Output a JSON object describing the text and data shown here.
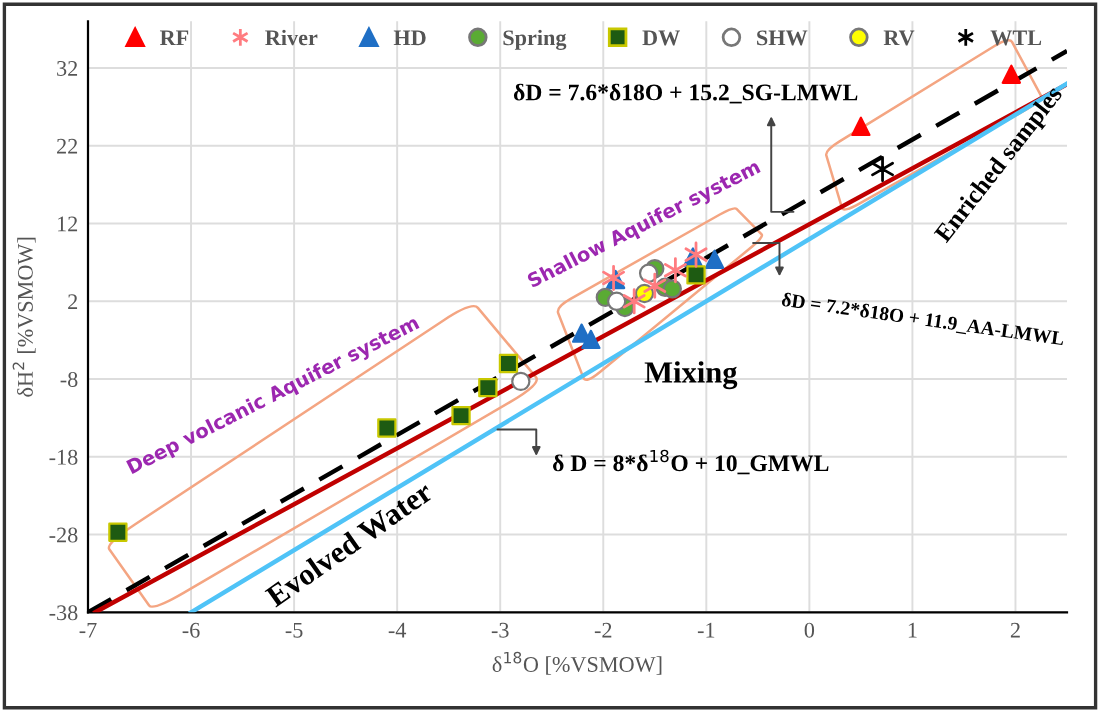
{
  "chart_data": {
    "type": "scatter",
    "xlabel": "δ$^{18}$O [%VSMOW]",
    "ylabel": "δH$^{2}$ [%VSMOW]",
    "xlim": [
      -7,
      2.5
    ],
    "ylim": [
      -38,
      38
    ],
    "xticks": [
      -7,
      -6,
      -5,
      -4,
      -3,
      -2,
      -1,
      0,
      1,
      2
    ],
    "yticks": [
      -38,
      -28,
      -18,
      -8,
      2,
      12,
      22,
      32
    ],
    "grid": true,
    "legend": "top",
    "series": [
      {
        "name": "RF",
        "marker": "triangle",
        "color": "#ff0000",
        "x": [
          0.5,
          1.96
        ],
        "values": [
          24.5,
          31.2
        ]
      },
      {
        "name": "River",
        "marker": "cross",
        "color": "#ff7c80",
        "x": [
          -1.9,
          -1.7,
          -1.5,
          -1.3,
          -1.1
        ],
        "values": [
          5,
          2,
          4,
          6,
          8
        ]
      },
      {
        "name": "HD",
        "marker": "triangle",
        "color": "#1f6fc5",
        "x": [
          -2.21,
          -2.12,
          -1.88,
          -1.13,
          -0.92
        ],
        "values": [
          -2.1,
          -2.9,
          4.8,
          7.7,
          7.4
        ]
      },
      {
        "name": "Spring",
        "marker": "circle",
        "color": "#5aab33",
        "x": [
          -1.98,
          -1.79,
          -1.5,
          -1.4,
          -1.33
        ],
        "values": [
          2.5,
          1.2,
          6.2,
          3.8,
          3.6
        ]
      },
      {
        "name": "DW",
        "marker": "square",
        "color": "#1e5b12",
        "x": [
          -6.71,
          -4.1,
          -3.38,
          -3.12,
          -2.92,
          -1.1
        ],
        "values": [
          -27.7,
          -14.3,
          -12.7,
          -9.1,
          -6,
          5.4
        ]
      },
      {
        "name": "SHW",
        "marker": "circle",
        "color": "#ffffff",
        "x": [
          -2.8,
          -1.87,
          -1.56
        ],
        "values": [
          -8.3,
          2,
          5.6
        ]
      },
      {
        "name": "RV",
        "marker": "circle",
        "color": "#ffff00",
        "x": [
          -1.6
        ],
        "values": [
          3
        ]
      },
      {
        "name": "WTL",
        "marker": "cross",
        "color": "#000000",
        "x": [
          0.71
        ],
        "values": [
          19
        ]
      },
      {
        "type": "line",
        "line_style": "dashed",
        "color": "#000000",
        "x": [
          -7,
          2.5
        ],
        "values": [
          -38,
          34.2
        ]
      },
      {
        "type": "line",
        "line_style": "solid",
        "color": "#c00000",
        "x": [
          -6.93,
          2.5
        ],
        "values": [
          -38,
          29.9
        ]
      },
      {
        "type": "line",
        "line_style": "solid",
        "color": "#4fc3f7",
        "x": [
          -6,
          2.5
        ],
        "values": [
          -38,
          30
        ]
      }
    ],
    "annotations": [
      "δD = 7.6*δ18O + 15.2_SG-LMWL",
      "δD = 7.2*δ18O + 11.9_AA-LMWL",
      "δ D = 8*δ$^{18}$O + 10_GMWL",
      "Deep volcanic Aquifer system",
      "Shallow Aquifer system",
      "Enriched samples",
      "Mixing",
      "Evolved Water"
    ]
  }
}
